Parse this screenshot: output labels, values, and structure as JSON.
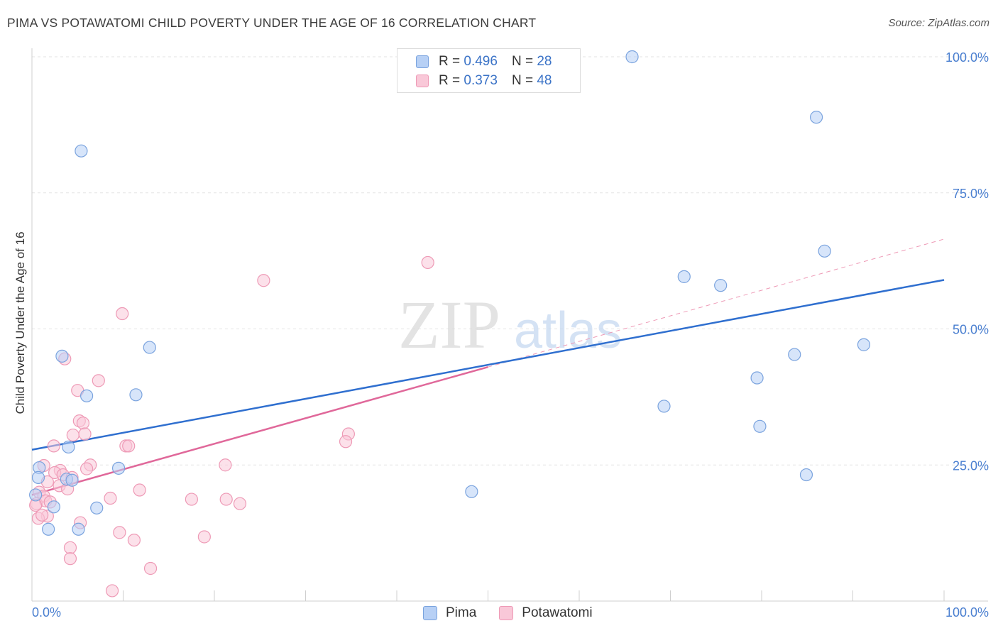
{
  "title": "PIMA VS POTAWATOMI CHILD POVERTY UNDER THE AGE OF 16 CORRELATION CHART",
  "source": "Source: ZipAtlas.com",
  "watermark": {
    "zip": "ZIP",
    "atlas": "atlas"
  },
  "legend": {
    "rows": [
      {
        "r_label": "R =",
        "r_value": "0.496",
        "n_label": "N =",
        "n_value": "28"
      },
      {
        "r_label": "R =",
        "r_value": "0.373",
        "n_label": "N =",
        "n_value": "48"
      }
    ]
  },
  "colors": {
    "pima_fill": "#b7d0f5",
    "pima_stroke": "#7aa3de",
    "pima_line": "#2f6fcf",
    "pota_fill": "#f9c8d8",
    "pota_stroke": "#ee9ab6",
    "pota_line": "#e0689a",
    "grid": "#e3e3e3",
    "tick_text": "#4a7fd0"
  },
  "chart_data": {
    "type": "scatter",
    "ylabel": "Child Poverty Under the Age of 16",
    "xlim": [
      0,
      100
    ],
    "ylim": [
      0,
      100
    ],
    "x_tick_labels": [
      "0.0%",
      "100.0%"
    ],
    "y_ticks": [
      25,
      50,
      75,
      100
    ],
    "y_tick_labels": [
      "25.0%",
      "50.0%",
      "75.0%",
      "100.0%"
    ],
    "grid": true,
    "legend_position": "top-center",
    "series": [
      {
        "name": "Pima",
        "points": [
          [
            5.4,
            82.7
          ],
          [
            65.8,
            100
          ],
          [
            86.0,
            88.9
          ],
          [
            86.9,
            64.3
          ],
          [
            71.5,
            59.6
          ],
          [
            75.5,
            58.0
          ],
          [
            3.3,
            45.0
          ],
          [
            12.9,
            46.6
          ],
          [
            83.6,
            45.3
          ],
          [
            91.2,
            47.1
          ],
          [
            79.5,
            41.0
          ],
          [
            6.0,
            37.7
          ],
          [
            11.4,
            37.9
          ],
          [
            69.3,
            35.8
          ],
          [
            79.8,
            32.1
          ],
          [
            4.0,
            28.3
          ],
          [
            9.5,
            24.4
          ],
          [
            0.8,
            24.5
          ],
          [
            3.8,
            22.4
          ],
          [
            4.4,
            22.2
          ],
          [
            84.9,
            23.2
          ],
          [
            0.7,
            22.7
          ],
          [
            48.2,
            20.1
          ],
          [
            0.4,
            19.5
          ],
          [
            2.4,
            17.3
          ],
          [
            7.1,
            17.1
          ],
          [
            1.8,
            13.2
          ],
          [
            5.1,
            13.2
          ]
        ],
        "trend": {
          "x": [
            0,
            100
          ],
          "y": [
            27.8,
            59.0
          ]
        }
      },
      {
        "name": "Potawatomi",
        "points": [
          [
            43.4,
            62.2
          ],
          [
            25.4,
            58.9
          ],
          [
            9.9,
            52.8
          ],
          [
            3.6,
            44.5
          ],
          [
            7.3,
            40.5
          ],
          [
            5.0,
            38.7
          ],
          [
            5.2,
            33.1
          ],
          [
            5.6,
            32.7
          ],
          [
            4.5,
            30.5
          ],
          [
            5.8,
            30.7
          ],
          [
            34.7,
            30.7
          ],
          [
            2.4,
            28.5
          ],
          [
            10.3,
            28.5
          ],
          [
            10.6,
            28.5
          ],
          [
            34.4,
            29.3
          ],
          [
            1.3,
            24.9
          ],
          [
            6.4,
            25.0
          ],
          [
            21.2,
            25.0
          ],
          [
            3.1,
            24.0
          ],
          [
            6.0,
            24.3
          ],
          [
            2.5,
            23.6
          ],
          [
            3.4,
            23.2
          ],
          [
            4.4,
            22.7
          ],
          [
            1.7,
            21.9
          ],
          [
            3.0,
            21.2
          ],
          [
            0.8,
            20.0
          ],
          [
            3.9,
            20.6
          ],
          [
            11.8,
            20.4
          ],
          [
            1.3,
            19.3
          ],
          [
            8.6,
            18.9
          ],
          [
            17.5,
            18.7
          ],
          [
            21.3,
            18.7
          ],
          [
            22.8,
            17.9
          ],
          [
            0.5,
            17.9
          ],
          [
            1.5,
            18.4
          ],
          [
            2.0,
            18.2
          ],
          [
            0.4,
            17.6
          ],
          [
            1.7,
            15.6
          ],
          [
            0.7,
            15.2
          ],
          [
            1.1,
            15.8
          ],
          [
            5.3,
            14.4
          ],
          [
            9.6,
            12.6
          ],
          [
            18.9,
            11.8
          ],
          [
            11.2,
            11.2
          ],
          [
            4.2,
            9.8
          ],
          [
            4.2,
            7.8
          ],
          [
            13.0,
            6.0
          ],
          [
            8.8,
            1.9
          ]
        ],
        "trend": {
          "x": [
            0,
            50
          ],
          "y": [
            19.5,
            43.0
          ]
        },
        "trend_extension": {
          "x": [
            50,
            100
          ],
          "y": [
            43.0,
            66.5
          ]
        }
      }
    ]
  }
}
